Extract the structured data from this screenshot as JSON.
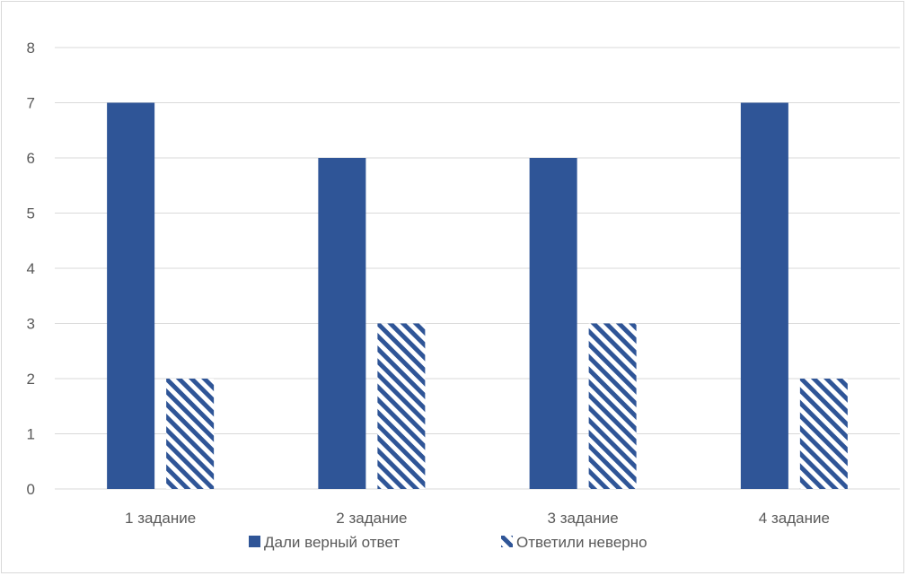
{
  "chart_data": {
    "type": "bar",
    "categories": [
      "1 задание",
      "2 задание",
      "3 задание",
      "4 задание"
    ],
    "series": [
      {
        "name": "Дали верный ответ",
        "values": [
          7,
          6,
          6,
          7
        ],
        "color": "#2f5597",
        "fill": "solid"
      },
      {
        "name": "Ответили неверно",
        "values": [
          2,
          3,
          3,
          2
        ],
        "color": "#2f5597",
        "fill": "diagonal-stripes"
      }
    ],
    "ylim": [
      0,
      8
    ],
    "yticks": [
      0,
      1,
      2,
      3,
      4,
      5,
      6,
      7,
      8
    ],
    "grid": true,
    "legend_position": "bottom"
  }
}
